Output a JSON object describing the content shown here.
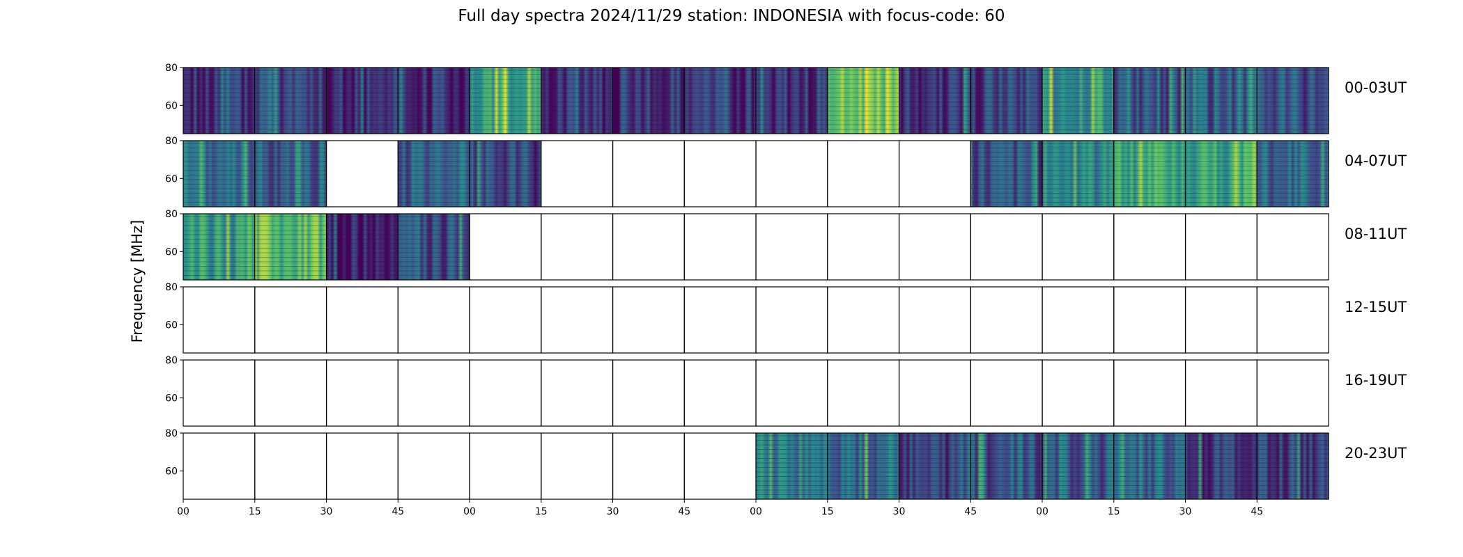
{
  "title": "Full day spectra 2024/11/29 station: INDONESIA with focus-code: 60",
  "ylabel": "Frequency [MHz]",
  "chart_data": {
    "type": "heatmap",
    "title": "Full day spectra 2024/11/29 station: INDONESIA with focus-code: 60",
    "ylabel": "Frequency [MHz]",
    "xlabel": "",
    "ylim": [
      45,
      80
    ],
    "yticks": [
      60,
      80
    ],
    "xticks": [
      "00",
      "15",
      "30",
      "45",
      "00",
      "15",
      "30",
      "45",
      "00",
      "15",
      "30",
      "45",
      "00",
      "15",
      "30",
      "45"
    ],
    "colormap": "viridis",
    "colors": {
      "low": "#440154",
      "mid": "#21918c",
      "high": "#fde725"
    },
    "rows": [
      {
        "label": "00-03UT",
        "panels": [
          1,
          1,
          1,
          1,
          1,
          1,
          1,
          1,
          1,
          1,
          1,
          1,
          1,
          1,
          1,
          1
        ],
        "intensity": [
          0.15,
          0.2,
          0.12,
          0.12,
          0.55,
          0.15,
          0.15,
          0.12,
          0.15,
          0.75,
          0.15,
          0.2,
          0.55,
          0.25,
          0.3,
          0.25
        ]
      },
      {
        "label": "04-07UT",
        "panels": [
          1,
          1,
          0,
          1,
          1,
          0,
          0,
          0,
          0,
          0,
          0,
          1,
          1,
          1,
          1,
          1
        ],
        "intensity": [
          0.35,
          0.3,
          0,
          0.3,
          0.2,
          0,
          0,
          0,
          0,
          0,
          0,
          0.25,
          0.45,
          0.6,
          0.6,
          0.35
        ]
      },
      {
        "label": "08-11UT",
        "panels": [
          1,
          1,
          1,
          1,
          0,
          0,
          0,
          0,
          0,
          0,
          0,
          0,
          0,
          0,
          0,
          0
        ],
        "intensity": [
          0.55,
          0.7,
          0.08,
          0.25,
          0,
          0,
          0,
          0,
          0,
          0,
          0,
          0,
          0,
          0,
          0,
          0
        ]
      },
      {
        "label": "12-15UT",
        "panels": [
          0,
          0,
          0,
          0,
          0,
          0,
          0,
          0,
          0,
          0,
          0,
          0,
          0,
          0,
          0,
          0
        ],
        "intensity": [
          0,
          0,
          0,
          0,
          0,
          0,
          0,
          0,
          0,
          0,
          0,
          0,
          0,
          0,
          0,
          0
        ]
      },
      {
        "label": "16-19UT",
        "panels": [
          0,
          0,
          0,
          0,
          0,
          0,
          0,
          0,
          0,
          0,
          0,
          0,
          0,
          0,
          0,
          0
        ],
        "intensity": [
          0,
          0,
          0,
          0,
          0,
          0,
          0,
          0,
          0,
          0,
          0,
          0,
          0,
          0,
          0,
          0
        ]
      },
      {
        "label": "20-23UT",
        "panels": [
          0,
          0,
          0,
          0,
          0,
          0,
          0,
          0,
          1,
          1,
          1,
          1,
          1,
          1,
          1,
          1
        ],
        "intensity": [
          0,
          0,
          0,
          0,
          0,
          0,
          0,
          0,
          0.45,
          0.35,
          0.2,
          0.25,
          0.3,
          0.35,
          0.2,
          0.2
        ]
      }
    ]
  }
}
